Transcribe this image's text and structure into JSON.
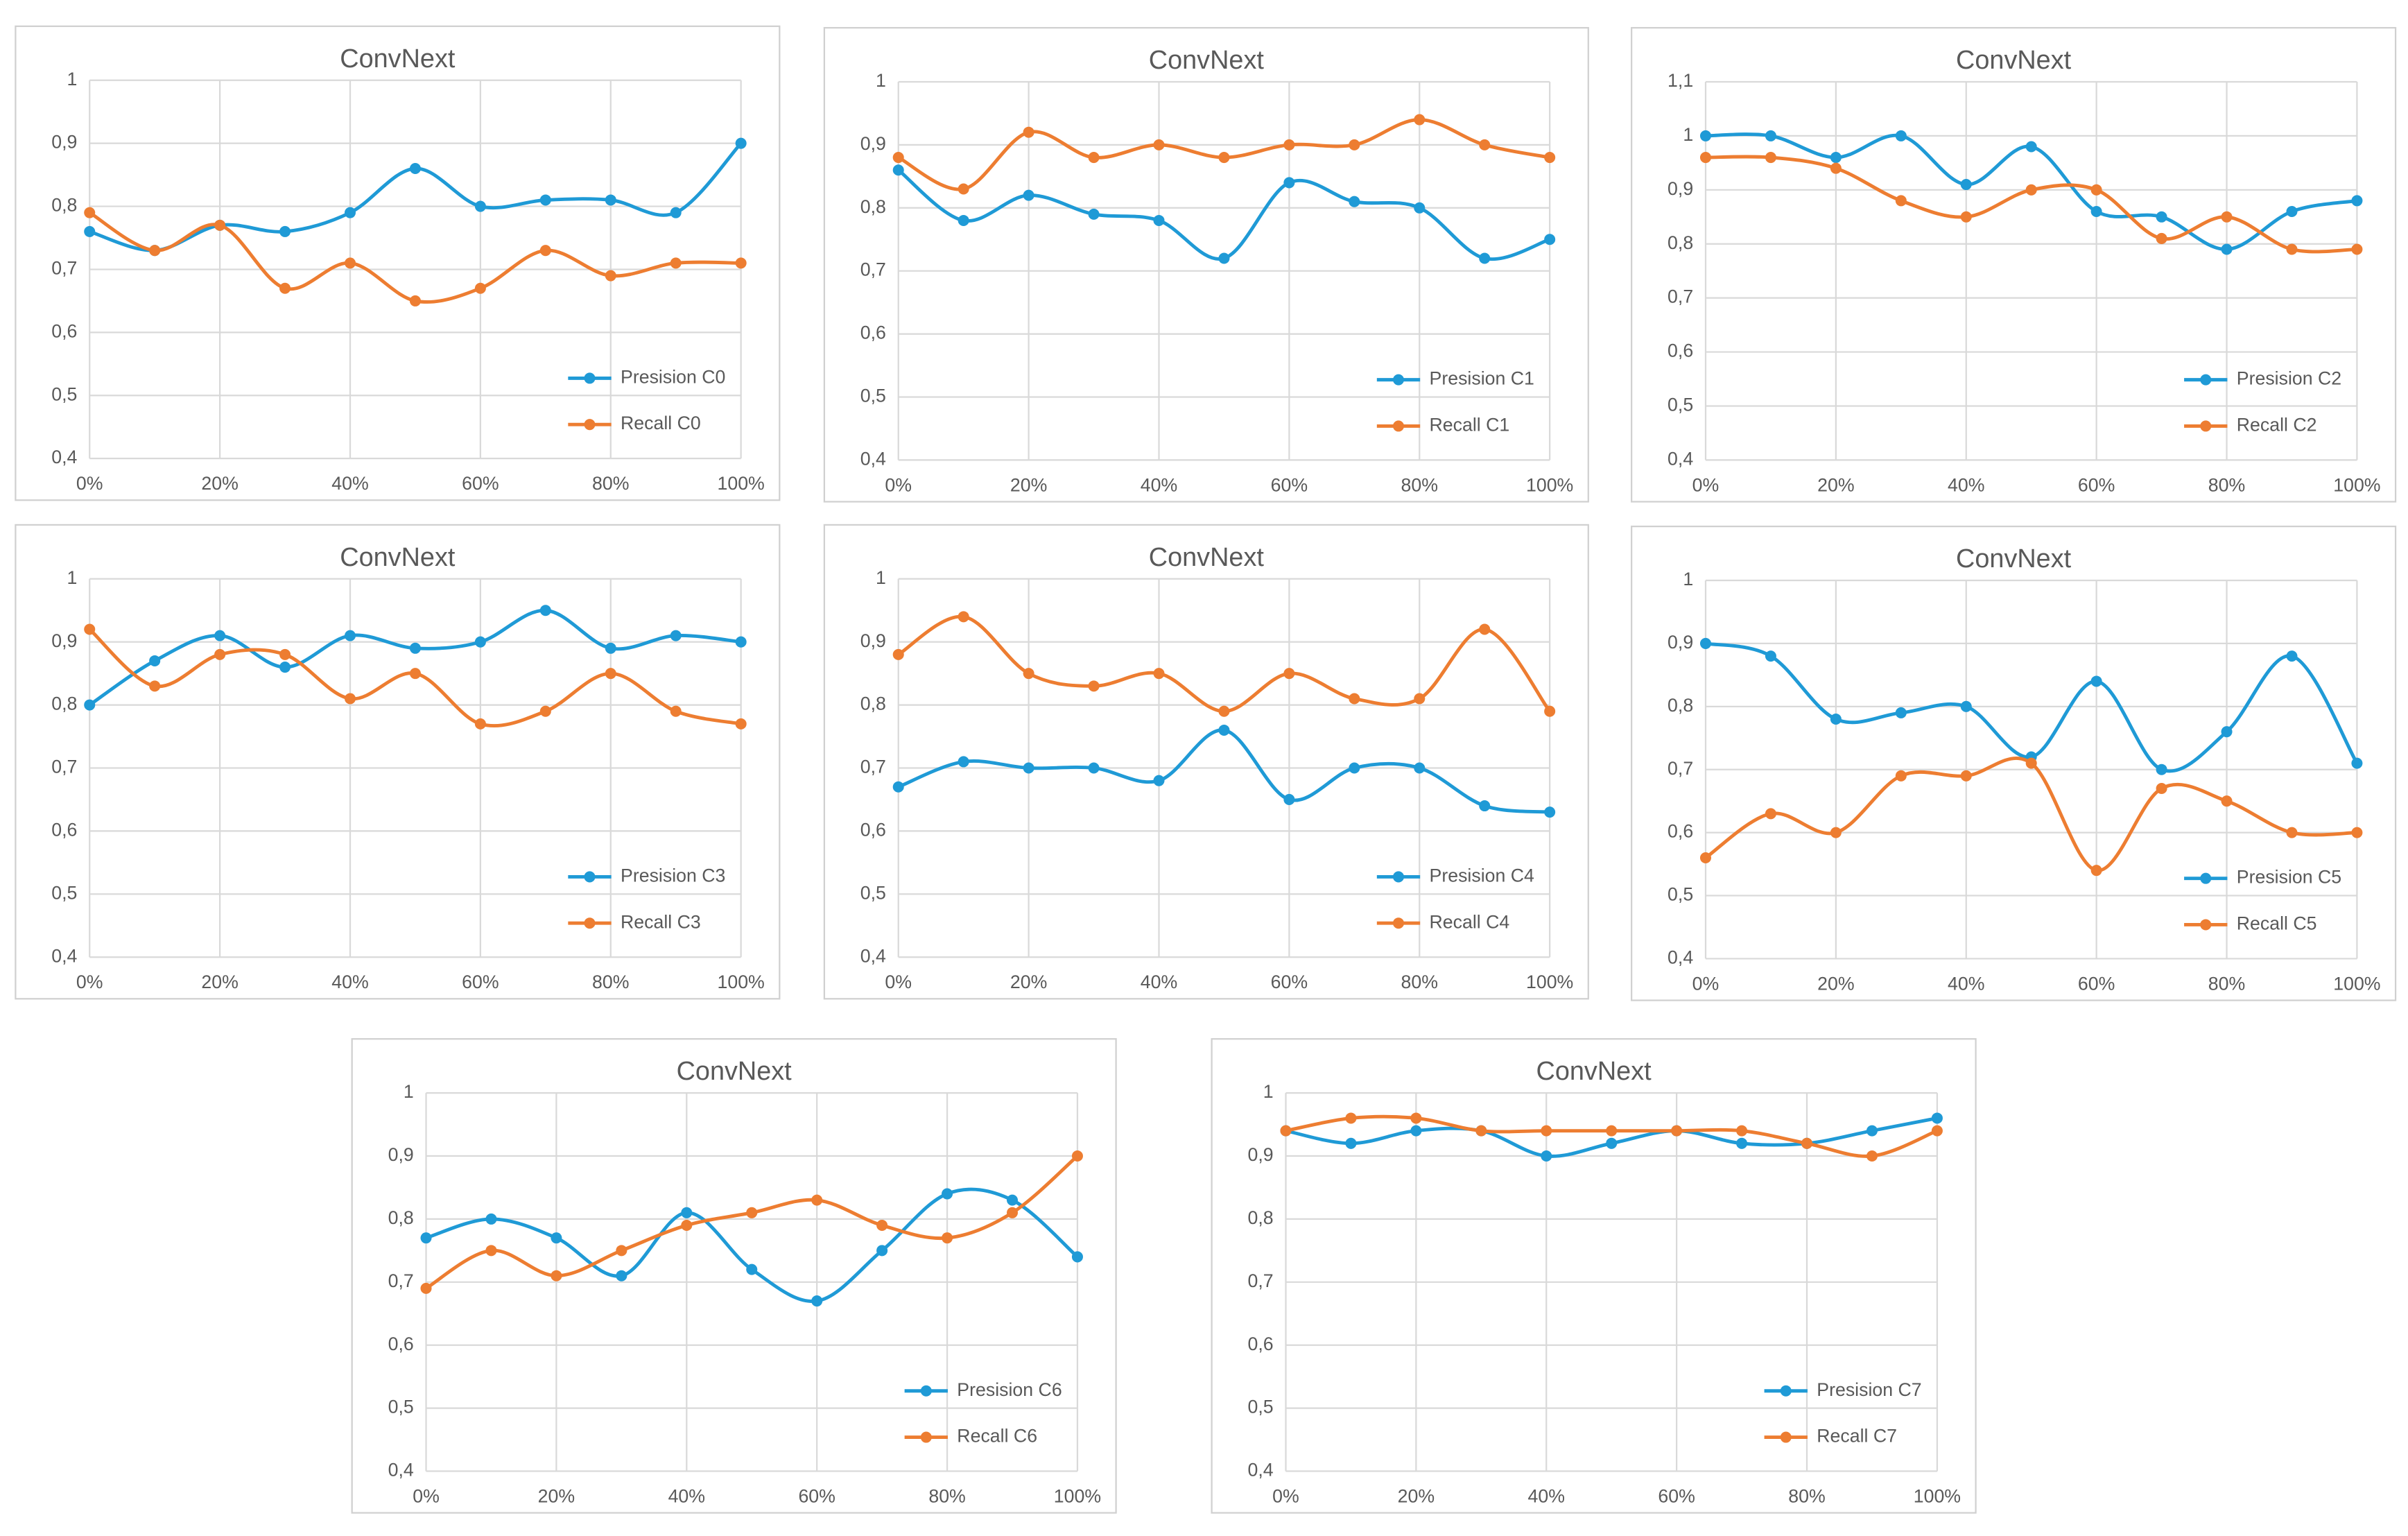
{
  "chart_data": [
    {
      "type": "line",
      "title": "ConvNext",
      "x": [
        0,
        10,
        20,
        30,
        40,
        50,
        60,
        70,
        80,
        90,
        100
      ],
      "series": [
        {
          "name": "Presision C0",
          "color": "#1f9ad6",
          "values": [
            0.76,
            0.73,
            0.77,
            0.76,
            0.79,
            0.86,
            0.8,
            0.81,
            0.81,
            0.79,
            0.9
          ]
        },
        {
          "name": "Recall C0",
          "color": "#ed7d31",
          "values": [
            0.79,
            0.73,
            0.77,
            0.67,
            0.71,
            0.65,
            0.67,
            0.73,
            0.69,
            0.71,
            0.71
          ]
        }
      ],
      "xlim": [
        0,
        100
      ],
      "xticks": [
        {
          "value": 0,
          "label": "0%"
        },
        {
          "value": 20,
          "label": "20%"
        },
        {
          "value": 40,
          "label": "40%"
        },
        {
          "value": 60,
          "label": "60%"
        },
        {
          "value": 80,
          "label": "80%"
        },
        {
          "value": 100,
          "label": "100%"
        }
      ],
      "ylim": [
        0.4,
        1
      ],
      "yticks": [
        {
          "value": 0.4,
          "label": "0,4"
        },
        {
          "value": 0.5,
          "label": "0,5"
        },
        {
          "value": 0.6,
          "label": "0,6"
        },
        {
          "value": 0.7,
          "label": "0,7"
        },
        {
          "value": 0.8,
          "label": "0,8"
        },
        {
          "value": 0.9,
          "label": "0,9"
        },
        1
      ],
      "grid": true,
      "legend": "lower right"
    },
    {
      "type": "line",
      "title": "ConvNext",
      "x": [
        0,
        10,
        20,
        30,
        40,
        50,
        60,
        70,
        80,
        90,
        100
      ],
      "series": [
        {
          "name": "Presision C1",
          "color": "#1f9ad6",
          "values": [
            0.86,
            0.78,
            0.82,
            0.79,
            0.78,
            0.72,
            0.84,
            0.81,
            0.8,
            0.72,
            0.75
          ]
        },
        {
          "name": "Recall C1",
          "color": "#ed7d31",
          "values": [
            0.88,
            0.83,
            0.92,
            0.88,
            0.9,
            0.88,
            0.9,
            0.9,
            0.94,
            0.9,
            0.88
          ]
        }
      ],
      "xlim": [
        0,
        100
      ],
      "xticks": [
        {
          "value": 0,
          "label": "0%"
        },
        {
          "value": 20,
          "label": "20%"
        },
        {
          "value": 40,
          "label": "40%"
        },
        {
          "value": 60,
          "label": "60%"
        },
        {
          "value": 80,
          "label": "80%"
        },
        {
          "value": 100,
          "label": "100%"
        }
      ],
      "ylim": [
        0.4,
        1
      ],
      "yticks": [
        {
          "value": 0.4,
          "label": "0,4"
        },
        {
          "value": 0.5,
          "label": "0,5"
        },
        {
          "value": 0.6,
          "label": "0,6"
        },
        {
          "value": 0.7,
          "label": "0,7"
        },
        {
          "value": 0.8,
          "label": "0,8"
        },
        {
          "value": 0.9,
          "label": "0,9"
        },
        1
      ],
      "grid": true,
      "legend": "lower right"
    },
    {
      "type": "line",
      "title": "ConvNext",
      "x": [
        0,
        10,
        20,
        30,
        40,
        50,
        60,
        70,
        80,
        90,
        100
      ],
      "series": [
        {
          "name": "Presision C2",
          "color": "#1f9ad6",
          "values": [
            1.0,
            1.0,
            0.96,
            1.0,
            0.91,
            0.98,
            0.86,
            0.85,
            0.79,
            0.86,
            0.88
          ]
        },
        {
          "name": "Recall C2",
          "color": "#ed7d31",
          "values": [
            0.96,
            0.96,
            0.94,
            0.88,
            0.85,
            0.9,
            0.9,
            0.81,
            0.85,
            0.79,
            0.79
          ]
        }
      ],
      "xlim": [
        0,
        100
      ],
      "xticks": [
        {
          "value": 0,
          "label": "0%"
        },
        {
          "value": 20,
          "label": "20%"
        },
        {
          "value": 40,
          "label": "40%"
        },
        {
          "value": 60,
          "label": "60%"
        },
        {
          "value": 80,
          "label": "80%"
        },
        {
          "value": 100,
          "label": "100%"
        }
      ],
      "ylim": [
        0.4,
        1.1
      ],
      "yticks": [
        {
          "value": 0.4,
          "label": "0,4"
        },
        {
          "value": 0.5,
          "label": "0,5"
        },
        {
          "value": 0.6,
          "label": "0,6"
        },
        {
          "value": 0.7,
          "label": "0,7"
        },
        {
          "value": 0.8,
          "label": "0,8"
        },
        {
          "value": 0.9,
          "label": "0,9"
        },
        1,
        {
          "value": 1.1,
          "label": "1,1"
        }
      ],
      "grid": true,
      "legend": "lower right"
    },
    {
      "type": "line",
      "title": "ConvNext",
      "x": [
        0,
        10,
        20,
        30,
        40,
        50,
        60,
        70,
        80,
        90,
        100
      ],
      "series": [
        {
          "name": "Presision C3",
          "color": "#1f9ad6",
          "values": [
            0.8,
            0.87,
            0.91,
            0.86,
            0.91,
            0.89,
            0.9,
            0.95,
            0.89,
            0.91,
            0.9
          ]
        },
        {
          "name": "Recall C3",
          "color": "#ed7d31",
          "values": [
            0.92,
            0.83,
            0.88,
            0.88,
            0.81,
            0.85,
            0.77,
            0.79,
            0.85,
            0.79,
            0.77
          ]
        }
      ],
      "xlim": [
        0,
        100
      ],
      "xticks": [
        {
          "value": 0,
          "label": "0%"
        },
        {
          "value": 20,
          "label": "20%"
        },
        {
          "value": 40,
          "label": "40%"
        },
        {
          "value": 60,
          "label": "60%"
        },
        {
          "value": 80,
          "label": "80%"
        },
        {
          "value": 100,
          "label": "100%"
        }
      ],
      "ylim": [
        0.4,
        1
      ],
      "yticks": [
        {
          "value": 0.4,
          "label": "0,4"
        },
        {
          "value": 0.5,
          "label": "0,5"
        },
        {
          "value": 0.6,
          "label": "0,6"
        },
        {
          "value": 0.7,
          "label": "0,7"
        },
        {
          "value": 0.8,
          "label": "0,8"
        },
        {
          "value": 0.9,
          "label": "0,9"
        },
        1
      ],
      "grid": true,
      "legend": "lower right"
    },
    {
      "type": "line",
      "title": "ConvNext",
      "x": [
        0,
        10,
        20,
        30,
        40,
        50,
        60,
        70,
        80,
        90,
        100
      ],
      "series": [
        {
          "name": "Presision C4",
          "color": "#1f9ad6",
          "values": [
            0.67,
            0.71,
            0.7,
            0.7,
            0.68,
            0.76,
            0.65,
            0.7,
            0.7,
            0.64,
            0.63
          ]
        },
        {
          "name": "Recall C4",
          "color": "#ed7d31",
          "values": [
            0.88,
            0.94,
            0.85,
            0.83,
            0.85,
            0.79,
            0.85,
            0.81,
            0.81,
            0.92,
            0.79
          ]
        }
      ],
      "xlim": [
        0,
        100
      ],
      "xticks": [
        {
          "value": 0,
          "label": "0%"
        },
        {
          "value": 20,
          "label": "20%"
        },
        {
          "value": 40,
          "label": "40%"
        },
        {
          "value": 60,
          "label": "60%"
        },
        {
          "value": 80,
          "label": "80%"
        },
        {
          "value": 100,
          "label": "100%"
        }
      ],
      "ylim": [
        0.4,
        1
      ],
      "yticks": [
        {
          "value": 0.4,
          "label": "0,4"
        },
        {
          "value": 0.5,
          "label": "0,5"
        },
        {
          "value": 0.6,
          "label": "0,6"
        },
        {
          "value": 0.7,
          "label": "0,7"
        },
        {
          "value": 0.8,
          "label": "0,8"
        },
        {
          "value": 0.9,
          "label": "0,9"
        },
        1
      ],
      "grid": true,
      "legend": "lower right"
    },
    {
      "type": "line",
      "title": "ConvNext",
      "x": [
        0,
        10,
        20,
        30,
        40,
        50,
        60,
        70,
        80,
        90,
        100
      ],
      "series": [
        {
          "name": "Presision C5",
          "color": "#1f9ad6",
          "values": [
            0.9,
            0.88,
            0.78,
            0.79,
            0.8,
            0.72,
            0.84,
            0.7,
            0.76,
            0.88,
            0.71
          ]
        },
        {
          "name": "Recall C5",
          "color": "#ed7d31",
          "values": [
            0.56,
            0.63,
            0.6,
            0.69,
            0.69,
            0.71,
            0.54,
            0.67,
            0.65,
            0.6,
            0.6
          ]
        }
      ],
      "xlim": [
        0,
        100
      ],
      "xticks": [
        {
          "value": 0,
          "label": "0%"
        },
        {
          "value": 20,
          "label": "20%"
        },
        {
          "value": 40,
          "label": "40%"
        },
        {
          "value": 60,
          "label": "60%"
        },
        {
          "value": 80,
          "label": "80%"
        },
        {
          "value": 100,
          "label": "100%"
        }
      ],
      "ylim": [
        0.4,
        1
      ],
      "yticks": [
        {
          "value": 0.4,
          "label": "0,4"
        },
        {
          "value": 0.5,
          "label": "0,5"
        },
        {
          "value": 0.6,
          "label": "0,6"
        },
        {
          "value": 0.7,
          "label": "0,7"
        },
        {
          "value": 0.8,
          "label": "0,8"
        },
        {
          "value": 0.9,
          "label": "0,9"
        },
        1
      ],
      "grid": true,
      "legend": "lower right"
    },
    {
      "type": "line",
      "title": "ConvNext",
      "x": [
        0,
        10,
        20,
        30,
        40,
        50,
        60,
        70,
        80,
        90,
        100
      ],
      "series": [
        {
          "name": "Presision C6",
          "color": "#1f9ad6",
          "values": [
            0.77,
            0.8,
            0.77,
            0.71,
            0.81,
            0.72,
            0.67,
            0.75,
            0.84,
            0.83,
            0.74
          ]
        },
        {
          "name": "Recall C6",
          "color": "#ed7d31",
          "values": [
            0.69,
            0.75,
            0.71,
            0.75,
            0.79,
            0.81,
            0.83,
            0.79,
            0.77,
            0.81,
            0.9
          ]
        }
      ],
      "xlim": [
        0,
        100
      ],
      "xticks": [
        {
          "value": 0,
          "label": "0%"
        },
        {
          "value": 20,
          "label": "20%"
        },
        {
          "value": 40,
          "label": "40%"
        },
        {
          "value": 60,
          "label": "60%"
        },
        {
          "value": 80,
          "label": "80%"
        },
        {
          "value": 100,
          "label": "100%"
        }
      ],
      "ylim": [
        0.4,
        1
      ],
      "yticks": [
        {
          "value": 0.4,
          "label": "0,4"
        },
        {
          "value": 0.5,
          "label": "0,5"
        },
        {
          "value": 0.6,
          "label": "0,6"
        },
        {
          "value": 0.7,
          "label": "0,7"
        },
        {
          "value": 0.8,
          "label": "0,8"
        },
        {
          "value": 0.9,
          "label": "0,9"
        },
        1
      ],
      "grid": true,
      "legend": "lower right"
    },
    {
      "type": "line",
      "title": "ConvNext",
      "x": [
        0,
        10,
        20,
        30,
        40,
        50,
        60,
        70,
        80,
        90,
        100
      ],
      "series": [
        {
          "name": "Presision C7",
          "color": "#1f9ad6",
          "values": [
            0.94,
            0.92,
            0.94,
            0.94,
            0.9,
            0.92,
            0.94,
            0.92,
            0.92,
            0.94,
            0.96
          ]
        },
        {
          "name": "Recall C7",
          "color": "#ed7d31",
          "values": [
            0.94,
            0.96,
            0.96,
            0.94,
            0.94,
            0.94,
            0.94,
            0.94,
            0.92,
            0.9,
            0.94
          ]
        }
      ],
      "xlim": [
        0,
        100
      ],
      "xticks": [
        {
          "value": 0,
          "label": "0%"
        },
        {
          "value": 20,
          "label": "20%"
        },
        {
          "value": 40,
          "label": "40%"
        },
        {
          "value": 60,
          "label": "60%"
        },
        {
          "value": 80,
          "label": "80%"
        },
        {
          "value": 100,
          "label": "100%"
        }
      ],
      "ylim": [
        0.4,
        1
      ],
      "yticks": [
        {
          "value": 0.4,
          "label": "0,4"
        },
        {
          "value": 0.5,
          "label": "0,5"
        },
        {
          "value": 0.6,
          "label": "0,6"
        },
        {
          "value": 0.7,
          "label": "0,7"
        },
        {
          "value": 0.8,
          "label": "0,8"
        },
        {
          "value": 0.9,
          "label": "0,9"
        },
        1
      ],
      "grid": true,
      "legend": "lower right"
    }
  ]
}
